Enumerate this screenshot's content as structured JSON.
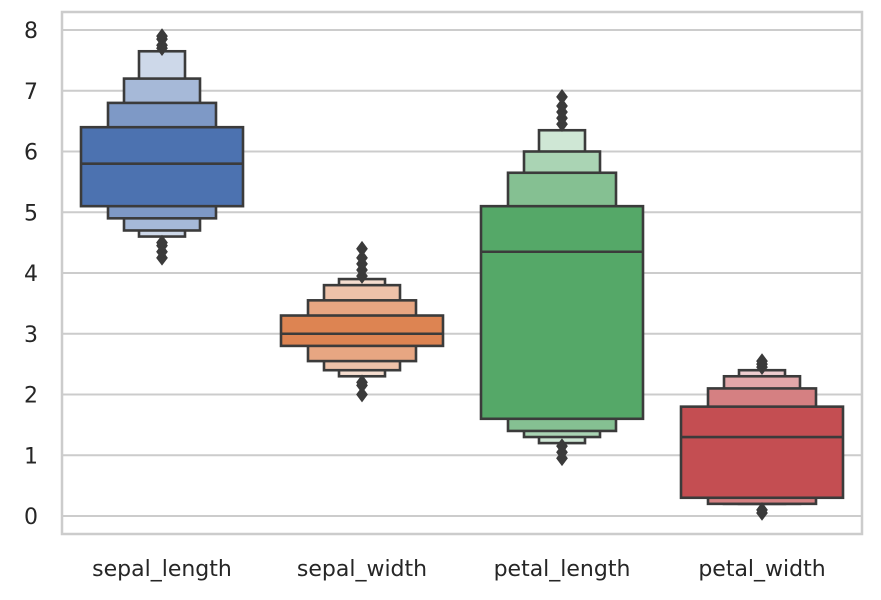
{
  "chart_data": {
    "type": "boxenplot",
    "title": "",
    "xlabel": "",
    "ylabel": "",
    "grid": "horizontal",
    "legend": "none",
    "ylim": [
      -0.25,
      8.3
    ],
    "yticks": [
      0,
      1,
      2,
      3,
      4,
      5,
      6,
      7,
      8
    ],
    "categories": [
      "sepal_length",
      "sepal_width",
      "petal_length",
      "petal_width"
    ],
    "series": [
      {
        "category": "sepal_length",
        "color": "#4c72b0",
        "median": 5.8,
        "levels": [
          [
            5.1,
            6.4
          ],
          [
            4.9,
            6.8
          ],
          [
            4.7,
            7.2
          ],
          [
            4.6,
            7.65
          ]
        ],
        "outliers": [
          4.25,
          4.35,
          4.45,
          4.5,
          7.7,
          7.75,
          7.85,
          7.9
        ]
      },
      {
        "category": "sepal_width",
        "color": "#dd8452",
        "median": 3.0,
        "levels": [
          [
            2.8,
            3.3
          ],
          [
            2.55,
            3.55
          ],
          [
            2.4,
            3.8
          ],
          [
            2.3,
            3.9
          ]
        ],
        "outliers": [
          2.0,
          2.15,
          2.2,
          3.95,
          4.05,
          4.15,
          4.25,
          4.4
        ]
      },
      {
        "category": "petal_length",
        "color": "#55a868",
        "median": 4.35,
        "levels": [
          [
            1.6,
            5.1
          ],
          [
            1.4,
            5.65
          ],
          [
            1.3,
            6.0
          ],
          [
            1.2,
            6.35
          ]
        ],
        "outliers": [
          0.95,
          1.05,
          1.15,
          6.45,
          6.55,
          6.65,
          6.75,
          6.9
        ]
      },
      {
        "category": "petal_width",
        "color": "#c44e52",
        "median": 1.3,
        "levels": [
          [
            0.3,
            1.8
          ],
          [
            0.2,
            2.1
          ],
          [
            0.2,
            2.3
          ],
          [
            0.2,
            2.4
          ]
        ],
        "outliers": [
          0.05,
          0.1,
          2.45,
          2.5,
          2.55
        ]
      }
    ]
  }
}
